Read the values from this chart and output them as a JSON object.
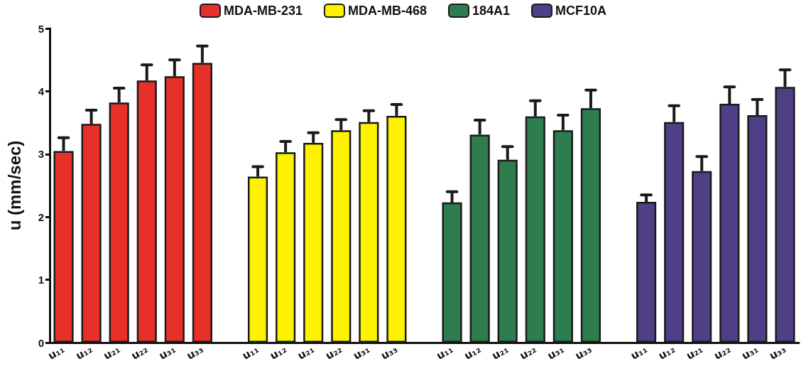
{
  "chart_data": {
    "type": "bar",
    "ylabel": "u (mm/sec)",
    "categories": [
      "u₁₁",
      "u₁₂",
      "u₂₁",
      "u₂₂",
      "u₃₁",
      "u₃₃",
      null,
      "u₁₁",
      "u₁₂",
      "u₂₁",
      "u₂₂",
      "u₃₁",
      "u₃₃",
      null,
      "u₁₁",
      "u₁₂",
      "u₂₁",
      "u₂₂",
      "u₃₁",
      "u₃₃",
      null,
      "u₁₁",
      "u₁₂",
      "u₂₁",
      "u₂₂",
      "u₃₁",
      "u₃₃"
    ],
    "stacked": true,
    "series": [
      {
        "name": "MDA-MB-231",
        "color": "#e8302a",
        "values": [
          3.05,
          3.48,
          3.82,
          4.17,
          4.24,
          4.45,
          null,
          null,
          null,
          null,
          null,
          null,
          null,
          null,
          null,
          null,
          null,
          null,
          null,
          null,
          null,
          null,
          null,
          null,
          null,
          null,
          null
        ],
        "errors": [
          [
            3.05,
            3.26
          ],
          [
            3.48,
            3.7
          ],
          [
            3.82,
            4.05
          ],
          [
            4.17,
            4.42
          ],
          [
            4.24,
            4.5
          ],
          [
            4.45,
            4.72
          ],
          null,
          null,
          null,
          null,
          null,
          null,
          null,
          null,
          null,
          null,
          null,
          null,
          null,
          null,
          null,
          null,
          null,
          null,
          null,
          null,
          null
        ]
      },
      {
        "name": "MDA-MB-468",
        "color": "#fff200",
        "values": [
          null,
          null,
          null,
          null,
          null,
          null,
          null,
          2.64,
          3.03,
          3.18,
          3.38,
          3.51,
          3.61,
          null,
          null,
          null,
          null,
          null,
          null,
          null,
          null,
          null,
          null,
          null,
          null,
          null,
          null
        ],
        "errors": [
          null,
          null,
          null,
          null,
          null,
          null,
          null,
          [
            2.64,
            2.8
          ],
          [
            3.03,
            3.2
          ],
          [
            3.18,
            3.34
          ],
          [
            3.38,
            3.55
          ],
          [
            3.51,
            3.69
          ],
          [
            3.61,
            3.79
          ],
          null,
          null,
          null,
          null,
          null,
          null,
          null,
          null,
          null,
          null,
          null,
          null,
          null,
          null
        ]
      },
      {
        "name": "184A1",
        "color": "#2e7d4f",
        "values": [
          null,
          null,
          null,
          null,
          null,
          null,
          null,
          null,
          null,
          null,
          null,
          null,
          null,
          null,
          2.23,
          3.31,
          2.91,
          3.6,
          3.38,
          3.73,
          null,
          null,
          null,
          null,
          null,
          null,
          null
        ],
        "errors": [
          null,
          null,
          null,
          null,
          null,
          null,
          null,
          null,
          null,
          null,
          null,
          null,
          null,
          null,
          [
            2.23,
            2.4
          ],
          [
            3.31,
            3.54
          ],
          [
            2.91,
            3.12
          ],
          [
            3.6,
            3.85
          ],
          [
            3.38,
            3.62
          ],
          [
            3.73,
            4.02
          ],
          null,
          null,
          null,
          null,
          null,
          null,
          null
        ]
      },
      {
        "name": "MCF10A",
        "color": "#4f3f86",
        "values": [
          null,
          null,
          null,
          null,
          null,
          null,
          null,
          null,
          null,
          null,
          null,
          null,
          null,
          null,
          null,
          null,
          null,
          null,
          null,
          null,
          null,
          2.24,
          3.51,
          2.73,
          3.8,
          3.62,
          4.07
        ],
        "errors": [
          null,
          null,
          null,
          null,
          null,
          null,
          null,
          null,
          null,
          null,
          null,
          null,
          null,
          null,
          null,
          null,
          null,
          null,
          null,
          null,
          null,
          [
            2.24,
            2.35
          ],
          [
            3.51,
            3.77
          ],
          [
            2.73,
            2.96
          ],
          [
            3.8,
            4.07
          ],
          [
            3.62,
            3.87
          ],
          [
            4.07,
            4.34
          ]
        ]
      }
    ],
    "ylim": [
      0,
      5
    ],
    "yticks": [
      0,
      1,
      2,
      3,
      4,
      5
    ],
    "grid": false,
    "legend": "top"
  }
}
